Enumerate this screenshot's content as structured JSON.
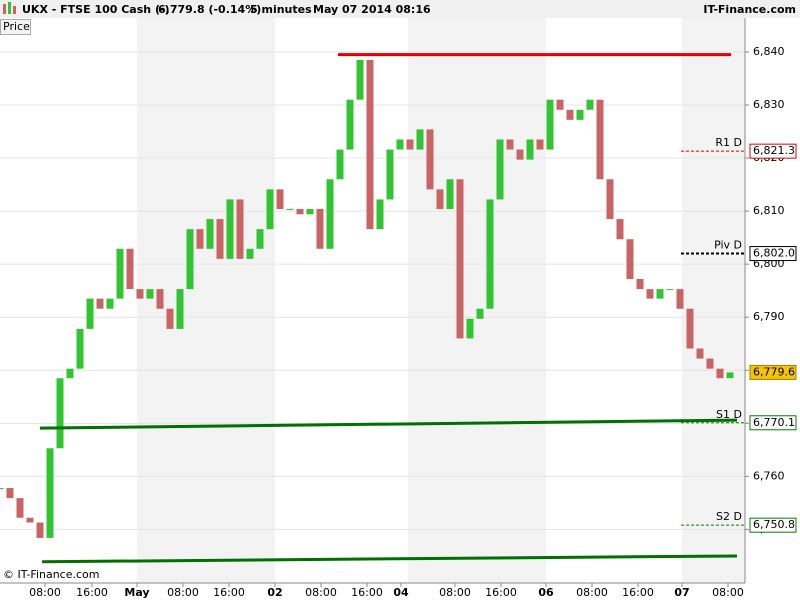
{
  "chart_data": {
    "type": "candlestick",
    "header": {
      "symbol": "UKX - FTSE 100 Cash (-)",
      "quote": "6,779.8 (-0.14%)",
      "interval": "5 minutes",
      "datetime": "May 07 2014 08:16",
      "brand": "IT-Finance.com"
    },
    "panel_label": "Price",
    "copyright": "© IT-Finance.com",
    "x": [
      0,
      1,
      2,
      3,
      4,
      5,
      6,
      7,
      8,
      9,
      10,
      11,
      12,
      13,
      14,
      15,
      16,
      17,
      18,
      19,
      20,
      21,
      22,
      23,
      24,
      25,
      26,
      27,
      28,
      29,
      30,
      31,
      32,
      33,
      34,
      35,
      36,
      37,
      38,
      39,
      40,
      41,
      42,
      43,
      44,
      45,
      46,
      47,
      48,
      49,
      50,
      51,
      52,
      53,
      54,
      55,
      56,
      57,
      58,
      59,
      60,
      61,
      62,
      63,
      64,
      65,
      66,
      67,
      68,
      69,
      70,
      71,
      72,
      73
    ],
    "series": [
      {
        "name": "Price",
        "up_color": "#33c433",
        "down_color": "#c86464",
        "values": [
          6757.8,
          6755.9,
          6752.2,
          6751.3,
          6748.4,
          6765.3,
          6778.5,
          6780.3,
          6787.8,
          6793.5,
          6791.6,
          6793.5,
          6802.9,
          6795.3,
          6793.5,
          6795.3,
          6791.6,
          6787.8,
          6795.3,
          6806.6,
          6802.9,
          6808.5,
          6801.0,
          6812.2,
          6801.0,
          6802.9,
          6806.6,
          6814.1,
          6810.4,
          6810.4,
          6809.4,
          6810.4,
          6802.9,
          6816.0,
          6821.6,
          6831.0,
          6838.5,
          6806.6,
          6812.2,
          6821.6,
          6823.5,
          6821.6,
          6825.4,
          6814.1,
          6810.4,
          6816.0,
          6786.0,
          6789.7,
          6791.6,
          6812.2,
          6823.5,
          6821.6,
          6819.7,
          6823.5,
          6821.6,
          6831.0,
          6829.1,
          6827.2,
          6829.1,
          6831.0,
          6816.0,
          6808.5,
          6804.7,
          6797.2,
          6795.3,
          6793.5,
          6795.3,
          6795.3,
          6791.6,
          6784.1,
          6782.2,
          6780.3,
          6778.5,
          6779.6
        ]
      }
    ],
    "xlim": [
      0,
      74.5
    ],
    "xticks": [
      {
        "value": 4.5,
        "label": "08:00"
      },
      {
        "value": 9.2,
        "label": "16:00"
      },
      {
        "value": 13.7,
        "label": "May"
      },
      {
        "value": 18.3,
        "label": "08:00"
      },
      {
        "value": 22.9,
        "label": "16:00"
      },
      {
        "value": 27.5,
        "label": "02"
      },
      {
        "value": 32.1,
        "label": "08:00"
      },
      {
        "value": 36.7,
        "label": "16:00"
      },
      {
        "value": 40.1,
        "label": "04"
      },
      {
        "value": 45.5,
        "label": "08:00"
      },
      {
        "value": 50.1,
        "label": "16:00"
      },
      {
        "value": 54.6,
        "label": "06"
      },
      {
        "value": 59.2,
        "label": "08:00"
      },
      {
        "value": 63.8,
        "label": "16:00"
      },
      {
        "value": 68.2,
        "label": "07"
      },
      {
        "value": 72.8,
        "label": "08:00"
      }
    ],
    "ylim": [
      6739.9,
      6846.4
    ],
    "yticks": [
      {
        "value": 6840,
        "label": "6,840"
      },
      {
        "value": 6830,
        "label": "6,830"
      },
      {
        "value": 6820,
        "label": "6,820"
      },
      {
        "value": 6810,
        "label": "6,810"
      },
      {
        "value": 6800,
        "label": "6,800"
      },
      {
        "value": 6790,
        "label": "6,790"
      },
      {
        "value": 6780,
        "label": "6,780"
      },
      {
        "value": 6770,
        "label": "6,770"
      },
      {
        "value": 6760,
        "label": "6,760"
      },
      {
        "value": 6750,
        "label": "6,750"
      }
    ],
    "grid": true,
    "trendlines": [
      {
        "color": "#e00000",
        "x": [
          33.8,
          73.1
        ],
        "y": [
          6839.5,
          6839.5
        ]
      },
      {
        "color": "#007000",
        "x": [
          4.0,
          73.7
        ],
        "y": [
          6769.1,
          6770.6
        ]
      },
      {
        "color": "#007000",
        "x": [
          4.2,
          73.7
        ],
        "y": [
          6743.9,
          6745.0
        ]
      }
    ],
    "levels": [
      {
        "name": "R1 D",
        "value": 6821.3,
        "value_label": "6,821.3",
        "color": "#e00000"
      },
      {
        "name": "Piv D",
        "value": 6802.0,
        "value_label": "6,802.0",
        "color": "#000000"
      },
      {
        "name": "S1 D",
        "value": 6770.1,
        "value_label": "6,770.1",
        "color": "#008000"
      },
      {
        "name": "S2 D",
        "value": 6750.8,
        "value_label": "6,750.8",
        "color": "#008000"
      }
    ],
    "last_price": {
      "value": 6779.6,
      "label": "6,779.6",
      "color": "#f5c400"
    }
  }
}
